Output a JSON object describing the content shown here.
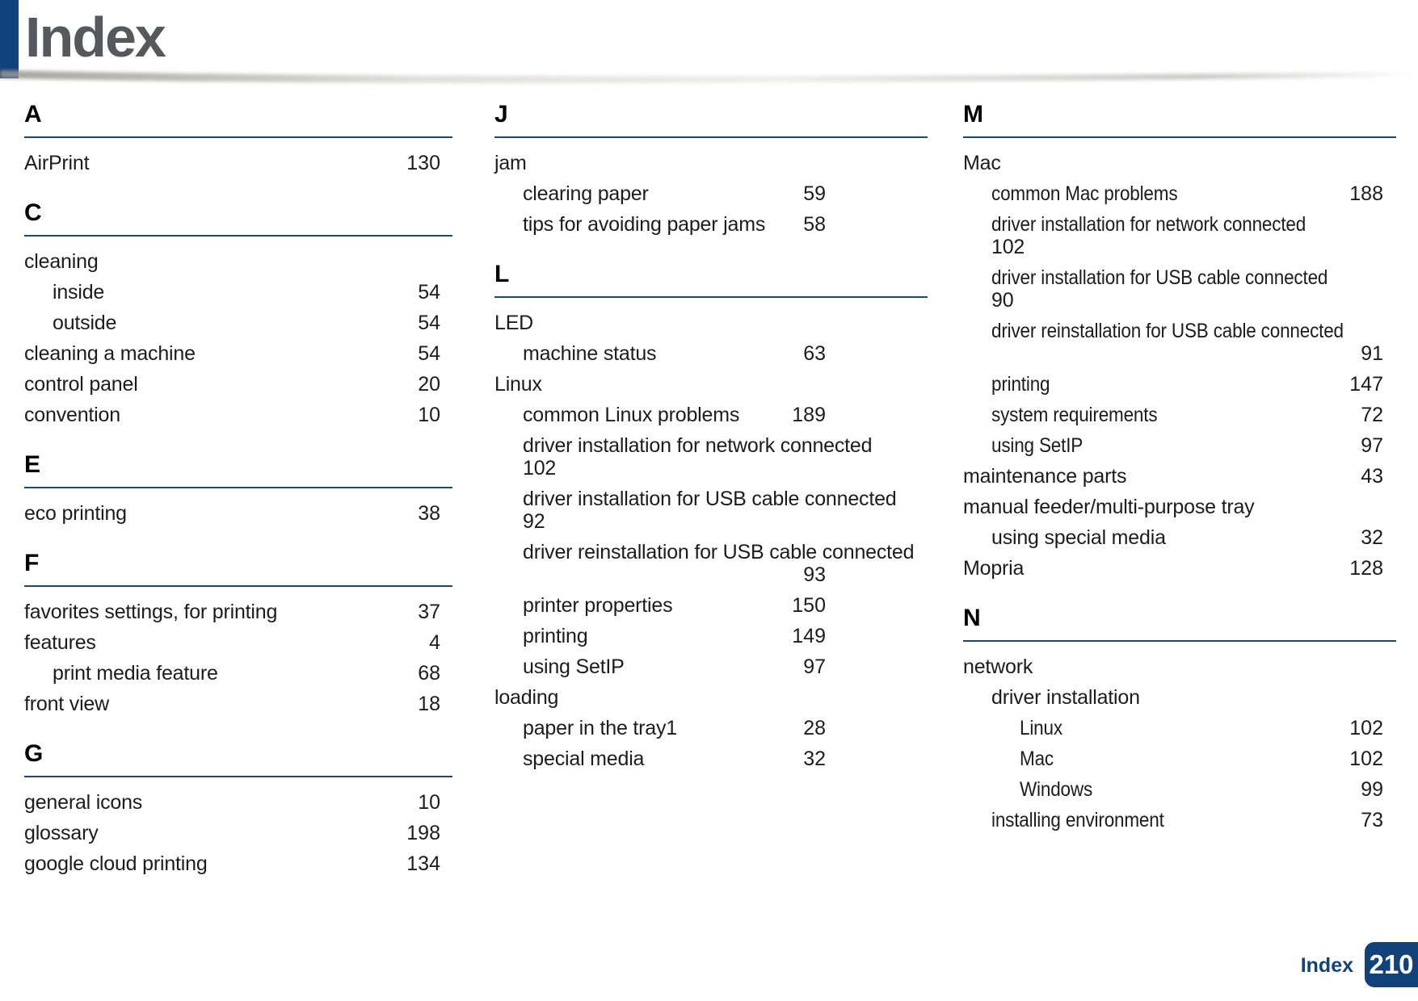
{
  "header": {
    "title": "Index"
  },
  "footer": {
    "label": "Index",
    "page_number": "210"
  },
  "colors": {
    "accent_navy": "#12427a",
    "rule_navy": "#134b7e",
    "title_gray": "#57585b",
    "body_text": "#1c1c1e"
  },
  "columns": [
    {
      "sections": [
        {
          "letter": "A",
          "entries": [
            {
              "label": "AirPrint",
              "page": "130",
              "indent": 0
            }
          ]
        },
        {
          "letter": "C",
          "entries": [
            {
              "label": "cleaning",
              "page": "",
              "indent": 0
            },
            {
              "label": "inside",
              "page": "54",
              "indent": 1
            },
            {
              "label": "outside",
              "page": "54",
              "indent": 1
            },
            {
              "label": "cleaning a machine",
              "page": "54",
              "indent": 0
            },
            {
              "label": "control panel",
              "page": "20",
              "indent": 0
            },
            {
              "label": "convention",
              "page": "10",
              "indent": 0
            }
          ]
        },
        {
          "letter": "E",
          "entries": [
            {
              "label": "eco printing",
              "page": "38",
              "indent": 0
            }
          ]
        },
        {
          "letter": "F",
          "entries": [
            {
              "label": "favorites settings, for printing",
              "page": "37",
              "indent": 0
            },
            {
              "label": "features",
              "page": "4",
              "indent": 0
            },
            {
              "label": "print media feature",
              "page": "68",
              "indent": 1
            },
            {
              "label": "front view",
              "page": "18",
              "indent": 0
            }
          ]
        },
        {
          "letter": "G",
          "entries": [
            {
              "label": "general icons",
              "page": "10",
              "indent": 0
            },
            {
              "label": "glossary",
              "page": "198",
              "indent": 0
            },
            {
              "label": "google cloud printing",
              "page": "134",
              "indent": 0
            }
          ]
        }
      ]
    },
    {
      "sections": [
        {
          "letter": "J",
          "entries": [
            {
              "label": "jam",
              "page": "",
              "indent": 0
            },
            {
              "label": "clearing paper",
              "page": "59",
              "indent": 1
            },
            {
              "label": "tips for avoiding paper jams",
              "page": "58",
              "indent": 1
            }
          ]
        },
        {
          "letter": "L",
          "entries": [
            {
              "label": "LED",
              "page": "",
              "indent": 0
            },
            {
              "label": "machine status",
              "page": "63",
              "indent": 1
            },
            {
              "label": "Linux",
              "page": "",
              "indent": 0
            },
            {
              "label": "common Linux problems",
              "page": "189",
              "indent": 1
            },
            {
              "label": "driver installation for network connected",
              "page": "102",
              "indent": 1,
              "wrap": "left"
            },
            {
              "label": "driver installation for USB cable connected",
              "page": "92",
              "indent": 1,
              "wrap": "left"
            },
            {
              "label": "driver reinstallation for USB cable connected",
              "page": "93",
              "indent": 1,
              "wrap": "right"
            },
            {
              "label": "printer properties",
              "page": "150",
              "indent": 1
            },
            {
              "label": "printing",
              "page": "149",
              "indent": 1
            },
            {
              "label": "using SetIP",
              "page": "97",
              "indent": 1
            },
            {
              "label": "loading",
              "page": "",
              "indent": 0
            },
            {
              "label": "paper in the tray1",
              "page": "28",
              "indent": 1
            },
            {
              "label": "special media",
              "page": "32",
              "indent": 1
            }
          ]
        }
      ]
    },
    {
      "sections": [
        {
          "letter": "M",
          "entries": [
            {
              "label": "Mac",
              "page": "",
              "indent": 0
            },
            {
              "label": "common Mac problems",
              "page": "188",
              "indent": 1,
              "condensed": true
            },
            {
              "label": "driver installation for network connected",
              "page": "102",
              "indent": 1,
              "wrap": "left",
              "condensed": true
            },
            {
              "label": "driver installation for USB cable connected",
              "page": "90",
              "indent": 1,
              "wrap": "left",
              "condensed": true
            },
            {
              "label": "driver reinstallation for USB cable connected",
              "page": "91",
              "indent": 1,
              "wrap": "right",
              "condensed": true
            },
            {
              "label": "printing",
              "page": "147",
              "indent": 1,
              "condensed": true
            },
            {
              "label": "system requirements",
              "page": "72",
              "indent": 1,
              "condensed": true
            },
            {
              "label": "using SetIP",
              "page": "97",
              "indent": 1,
              "condensed": true
            },
            {
              "label": "maintenance parts",
              "page": "43",
              "indent": 0
            },
            {
              "label": "manual feeder/multi-purpose tray",
              "page": "",
              "indent": 0
            },
            {
              "label": "using special media",
              "page": "32",
              "indent": 1
            },
            {
              "label": "Mopria",
              "page": "128",
              "indent": 0
            }
          ]
        },
        {
          "letter": "N",
          "entries": [
            {
              "label": "network",
              "page": "",
              "indent": 0
            },
            {
              "label": "driver installation",
              "page": "",
              "indent": 1
            },
            {
              "label": "Linux",
              "page": "102",
              "indent": 2,
              "condensed": true
            },
            {
              "label": "Mac",
              "page": "102",
              "indent": 2,
              "condensed": true
            },
            {
              "label": "Windows",
              "page": "99",
              "indent": 2,
              "condensed": true
            },
            {
              "label": "installing environment",
              "page": "73",
              "indent": 1,
              "condensed": true
            }
          ]
        }
      ]
    }
  ]
}
